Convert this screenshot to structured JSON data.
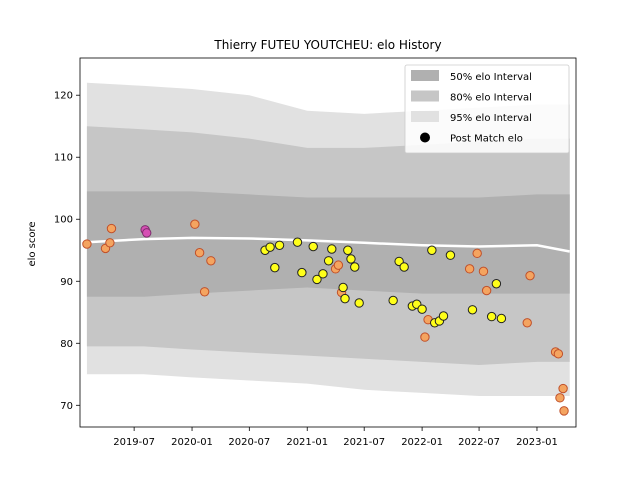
{
  "chart_data": {
    "type": "scatter",
    "title": "Thierry FUTEU YOUTCHEU: elo History",
    "xlabel": "",
    "ylabel": "elo score",
    "xlim": [
      "2019-01-10",
      "2023-05-05"
    ],
    "ylim": [
      66.5,
      126
    ],
    "x_ticks": [
      "2019-07",
      "2020-01",
      "2020-07",
      "2021-01",
      "2021-07",
      "2022-01",
      "2022-07",
      "2023-01"
    ],
    "y_ticks": [
      70,
      80,
      90,
      100,
      110,
      120
    ],
    "grid": false,
    "legend": {
      "placement": "top-right",
      "entries": [
        {
          "label": "50% elo Interval",
          "color": "#b0b0b0"
        },
        {
          "label": "80% elo Interval",
          "color": "#c6c6c6"
        },
        {
          "label": "95% elo Interval",
          "color": "#e1e1e1"
        },
        {
          "label": "Post Match elo",
          "color": "#000000"
        }
      ]
    },
    "band_dates": [
      "2019-02-01",
      "2019-08-01",
      "2020-01-01",
      "2020-07-01",
      "2021-01-01",
      "2021-07-01",
      "2022-01-01",
      "2022-07-01",
      "2023-01-01",
      "2023-04-15"
    ],
    "bands": [
      {
        "name": "95% elo Interval",
        "color": "#e1e1e1",
        "upper": [
          122.0,
          121.5,
          121.0,
          120.0,
          117.5,
          117.0,
          117.5,
          118.0,
          118.5,
          118.5
        ],
        "lower": [
          75.0,
          75.0,
          74.5,
          74.0,
          73.5,
          72.5,
          72.0,
          71.5,
          71.5,
          71.5
        ]
      },
      {
        "name": "80% elo Interval",
        "color": "#c6c6c6",
        "upper": [
          115.0,
          114.5,
          114.0,
          113.0,
          111.5,
          111.5,
          112.0,
          112.5,
          113.0,
          113.0
        ],
        "lower": [
          79.5,
          79.5,
          79.0,
          78.5,
          78.0,
          77.5,
          77.0,
          76.5,
          77.0,
          77.0
        ]
      },
      {
        "name": "50% elo Interval",
        "color": "#b0b0b0",
        "upper": [
          104.5,
          104.5,
          104.5,
          104.0,
          103.5,
          103.5,
          103.5,
          103.5,
          104.0,
          104.0
        ],
        "lower": [
          87.5,
          87.5,
          88.0,
          88.5,
          89.0,
          88.5,
          88.0,
          88.0,
          88.0,
          88.0
        ]
      }
    ],
    "mean_line": {
      "dates": [
        "2019-02-01",
        "2019-08-01",
        "2020-01-01",
        "2020-07-01",
        "2021-01-01",
        "2021-07-01",
        "2022-01-01",
        "2022-07-01",
        "2023-01-01",
        "2023-04-15"
      ],
      "values": [
        96.3,
        96.8,
        97.0,
        96.9,
        96.6,
        96.2,
        95.8,
        95.6,
        95.8,
        94.8
      ]
    },
    "series": [
      {
        "name": "Post Match elo",
        "points": [
          {
            "x": "2019-02-01",
            "y": 96.0,
            "color": "#f4a460"
          },
          {
            "x": "2019-04-01",
            "y": 95.3,
            "color": "#f4a460"
          },
          {
            "x": "2019-04-15",
            "y": 96.2,
            "color": "#f4a460"
          },
          {
            "x": "2019-04-20",
            "y": 98.5,
            "color": "#f4a460"
          },
          {
            "x": "2019-08-05",
            "y": 98.3,
            "color": "#d64fb4"
          },
          {
            "x": "2019-08-10",
            "y": 97.8,
            "color": "#d64fb4"
          },
          {
            "x": "2020-01-10",
            "y": 99.2,
            "color": "#f4a460"
          },
          {
            "x": "2020-01-25",
            "y": 94.6,
            "color": "#f4a460"
          },
          {
            "x": "2020-02-10",
            "y": 88.3,
            "color": "#f4a460"
          },
          {
            "x": "2020-03-01",
            "y": 93.3,
            "color": "#f4a460"
          },
          {
            "x": "2020-08-20",
            "y": 95.0,
            "color": "#ffff1a"
          },
          {
            "x": "2020-09-05",
            "y": 95.5,
            "color": "#ffff1a"
          },
          {
            "x": "2020-09-20",
            "y": 92.2,
            "color": "#ffff1a"
          },
          {
            "x": "2020-10-05",
            "y": 95.8,
            "color": "#ffff1a"
          },
          {
            "x": "2020-12-01",
            "y": 96.3,
            "color": "#ffff1a"
          },
          {
            "x": "2020-12-15",
            "y": 91.4,
            "color": "#ffff1a"
          },
          {
            "x": "2021-01-20",
            "y": 95.6,
            "color": "#ffff1a"
          },
          {
            "x": "2021-02-01",
            "y": 90.3,
            "color": "#ffff1a"
          },
          {
            "x": "2021-02-20",
            "y": 91.2,
            "color": "#ffff1a"
          },
          {
            "x": "2021-03-10",
            "y": 93.3,
            "color": "#ffff1a"
          },
          {
            "x": "2021-03-20",
            "y": 95.2,
            "color": "#ffff1a"
          },
          {
            "x": "2021-04-01",
            "y": 92.0,
            "color": "#f4a460"
          },
          {
            "x": "2021-04-10",
            "y": 92.6,
            "color": "#f4a460"
          },
          {
            "x": "2021-04-20",
            "y": 88.2,
            "color": "#f4a460"
          },
          {
            "x": "2021-04-25",
            "y": 89.0,
            "color": "#ffff1a"
          },
          {
            "x": "2021-05-01",
            "y": 87.2,
            "color": "#ffff1a"
          },
          {
            "x": "2021-05-10",
            "y": 95.0,
            "color": "#ffff1a"
          },
          {
            "x": "2021-05-20",
            "y": 93.6,
            "color": "#ffff1a"
          },
          {
            "x": "2021-06-01",
            "y": 92.3,
            "color": "#ffff1a"
          },
          {
            "x": "2021-06-15",
            "y": 86.5,
            "color": "#ffff1a"
          },
          {
            "x": "2021-10-01",
            "y": 86.9,
            "color": "#ffff1a"
          },
          {
            "x": "2021-10-20",
            "y": 93.2,
            "color": "#ffff1a"
          },
          {
            "x": "2021-11-05",
            "y": 92.3,
            "color": "#ffff1a"
          },
          {
            "x": "2021-12-01",
            "y": 86.0,
            "color": "#ffff1a"
          },
          {
            "x": "2021-12-15",
            "y": 86.3,
            "color": "#ffff1a"
          },
          {
            "x": "2022-01-01",
            "y": 85.5,
            "color": "#ffff1a"
          },
          {
            "x": "2022-01-10",
            "y": 81.0,
            "color": "#f4a460"
          },
          {
            "x": "2022-01-20",
            "y": 83.8,
            "color": "#f4a460"
          },
          {
            "x": "2022-02-01",
            "y": 95.0,
            "color": "#ffff1a"
          },
          {
            "x": "2022-02-10",
            "y": 83.3,
            "color": "#ffff1a"
          },
          {
            "x": "2022-02-25",
            "y": 83.6,
            "color": "#ffff1a"
          },
          {
            "x": "2022-03-10",
            "y": 84.4,
            "color": "#ffff1a"
          },
          {
            "x": "2022-04-01",
            "y": 94.2,
            "color": "#ffff1a"
          },
          {
            "x": "2022-06-01",
            "y": 92.0,
            "color": "#f4a460"
          },
          {
            "x": "2022-06-10",
            "y": 85.4,
            "color": "#ffff1a"
          },
          {
            "x": "2022-06-25",
            "y": 94.5,
            "color": "#f4a460"
          },
          {
            "x": "2022-07-15",
            "y": 91.6,
            "color": "#f4a460"
          },
          {
            "x": "2022-07-25",
            "y": 88.5,
            "color": "#f4a460"
          },
          {
            "x": "2022-08-10",
            "y": 84.3,
            "color": "#ffff1a"
          },
          {
            "x": "2022-08-25",
            "y": 89.6,
            "color": "#ffff1a"
          },
          {
            "x": "2022-09-10",
            "y": 84.0,
            "color": "#ffff1a"
          },
          {
            "x": "2022-12-01",
            "y": 83.3,
            "color": "#f4a460"
          },
          {
            "x": "2022-12-10",
            "y": 90.9,
            "color": "#f4a460"
          },
          {
            "x": "2023-03-01",
            "y": 78.6,
            "color": "#f4a460"
          },
          {
            "x": "2023-03-10",
            "y": 78.3,
            "color": "#f4a460"
          },
          {
            "x": "2023-03-15",
            "y": 71.2,
            "color": "#f4a460"
          },
          {
            "x": "2023-03-25",
            "y": 72.7,
            "color": "#f4a460"
          },
          {
            "x": "2023-03-28",
            "y": 69.1,
            "color": "#f4a460"
          }
        ]
      }
    ],
    "point_edge_colors": {
      "#f4a460": "#c0502a",
      "#ffff1a": "#222222",
      "#d64fb4": "#7a2e6a"
    }
  }
}
